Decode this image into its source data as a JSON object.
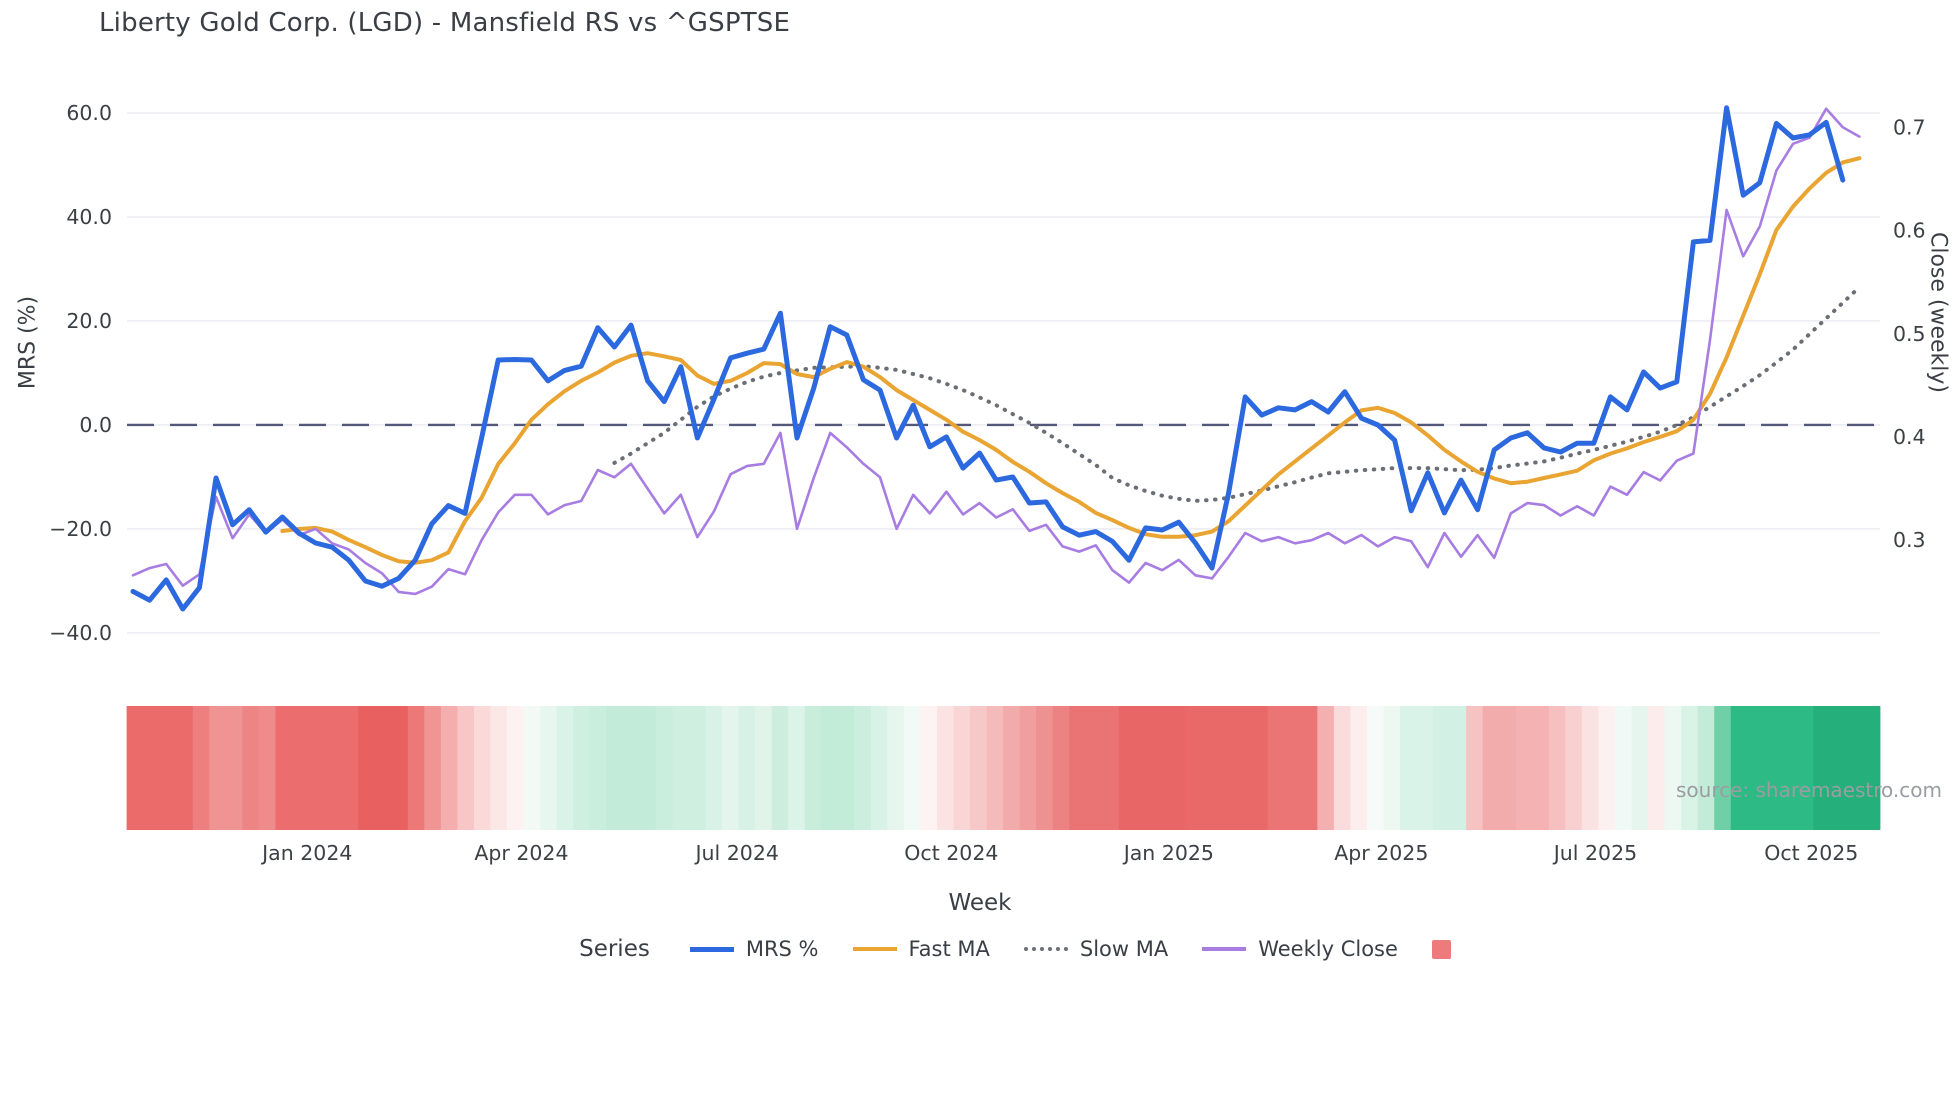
{
  "page": {
    "title": "Liberty Gold Corp. (LGD) - Mansfield RS vs ^GSPTSE",
    "source_note": "source: sharemaestro.com"
  },
  "legend": {
    "label": "Series"
  },
  "chart_data": {
    "type": "line",
    "title": "Liberty Gold Corp. (LGD) - Mansfield RS vs ^GSPTSE",
    "xlabel": "Week",
    "ylabel_left": "MRS (%)",
    "ylabel_right": "Close (weekly)",
    "x_weeks_total": 105,
    "x_ticks": [
      {
        "pos": 10.5,
        "label": "Jan 2024"
      },
      {
        "pos": 23.4,
        "label": "Apr 2024"
      },
      {
        "pos": 36.4,
        "label": "Jul 2024"
      },
      {
        "pos": 49.3,
        "label": "Oct 2024"
      },
      {
        "pos": 62.4,
        "label": "Jan 2025"
      },
      {
        "pos": 75.2,
        "label": "Apr 2025"
      },
      {
        "pos": 88.1,
        "label": "Jul 2025"
      },
      {
        "pos": 101.1,
        "label": "Oct 2025"
      }
    ],
    "left_axis": {
      "range": [
        -45.2,
        65.0
      ],
      "ticks": [
        {
          "v": 60,
          "label": "60.0"
        },
        {
          "v": 40,
          "label": "40.0"
        },
        {
          "v": 20,
          "label": "20.0"
        },
        {
          "v": 0,
          "label": "0.0"
        },
        {
          "v": -20,
          "label": "−20.0"
        },
        {
          "v": -40,
          "label": "−40.0"
        }
      ]
    },
    "right_axis": {
      "range": [
        0.184,
        0.739
      ],
      "ticks": [
        {
          "v": 0.7,
          "label": "0.7"
        },
        {
          "v": 0.6,
          "label": "0.6"
        },
        {
          "v": 0.5,
          "label": "0.5"
        },
        {
          "v": 0.4,
          "label": "0.4"
        },
        {
          "v": 0.3,
          "label": "0.3"
        }
      ]
    },
    "zero_line": {
      "value": 0,
      "style": "dashed",
      "color": "#53587a"
    },
    "grid_color": "#ebedf2",
    "series": [
      {
        "name": "MRS %",
        "color": "#2c69df",
        "width": 5,
        "style": "solid",
        "axis": "left",
        "start_week": 0,
        "values": [
          -32,
          -33.7,
          -29.8,
          -35.4,
          -31.3,
          -10.2,
          -19.2,
          -16.3,
          -20.6,
          -17.7,
          -20.8,
          -22.7,
          -23.5,
          -26,
          -30,
          -31,
          -29.5,
          -26,
          -19,
          -15.5,
          -17,
          -2.5,
          12.5,
          12.6,
          12.5,
          8.5,
          10.5,
          11.3,
          18.7,
          15,
          19.2,
          8.5,
          4.5,
          11.2,
          -2.5,
          5,
          12.9,
          13.8,
          14.6,
          21.5,
          -2.5,
          7,
          18.9,
          17.3,
          8.7,
          6.7,
          -2.5,
          3.8,
          -4.2,
          -2.3,
          -8.3,
          -5.4,
          -10.6,
          -10,
          -15,
          -14.8,
          -19.6,
          -21.2,
          -20.5,
          -22.4,
          -26,
          -19.8,
          -20.2,
          -18.7,
          -22.7,
          -27.5,
          -13.1,
          5.4,
          1.9,
          3.3,
          2.9,
          4.5,
          2.5,
          6.4,
          1.3,
          0,
          -2.9,
          -16.5,
          -9.2,
          -16.9,
          -10.6,
          -16.3,
          -4.8,
          -2.5,
          -1.5,
          -4.4,
          -5.2,
          -3.5,
          -3.5,
          5.4,
          2.9,
          10.2,
          7.1,
          8.3,
          35.2,
          35.5,
          61,
          44.2,
          46.6,
          58,
          55.2,
          55.8,
          58.2,
          47.1,
          null
        ]
      },
      {
        "name": "Fast MA",
        "color": "#e9a432",
        "width": 4,
        "style": "solid",
        "axis": "left",
        "start_week": 9,
        "values": [
          -20.4,
          -20,
          -19.8,
          -20.5,
          -22.1,
          -23.5,
          -25,
          -26.2,
          -26.5,
          -26,
          -24.5,
          -18.5,
          -14,
          -7.5,
          -3.5,
          1,
          4,
          6.5,
          8.5,
          10.1,
          12,
          13.3,
          13.8,
          13.2,
          12.5,
          9.5,
          7.9,
          8.5,
          10,
          11.9,
          11.7,
          9.8,
          9.2,
          10.8,
          12.1,
          11.2,
          9.2,
          6.7,
          4.8,
          2.9,
          1,
          -1.3,
          -2.9,
          -4.8,
          -7.1,
          -9,
          -11.2,
          -13.1,
          -14.8,
          -16.9,
          -18.3,
          -19.8,
          -21,
          -21.5,
          -21.5,
          -21.2,
          -20.5,
          -18.5,
          -15.5,
          -12.5,
          -9.5,
          -7,
          -4.5,
          -2,
          0.5,
          2.8,
          3.3,
          2.3,
          0.5,
          -2,
          -4.8,
          -7,
          -9,
          -10.3,
          -11.2,
          -10.9,
          -10.2,
          -9.5,
          -8.8,
          -6.8,
          -5.5,
          -4.5,
          -3.3,
          -2.3,
          -1.2,
          1,
          6,
          13,
          21,
          29,
          37.5,
          42,
          45.5,
          48.5,
          50.5,
          51.3
        ]
      },
      {
        "name": "Slow MA",
        "color": "#6b6f75",
        "width": 4,
        "style": "dotted",
        "axis": "left",
        "start_week": 29,
        "values": [
          -7.3,
          -5.5,
          -3.5,
          -1.5,
          1,
          3.5,
          5.5,
          7,
          8.3,
          9.3,
          10,
          10.5,
          11,
          11.1,
          11.2,
          11.3,
          11,
          10.6,
          9.8,
          9,
          7.9,
          6.7,
          5.3,
          3.8,
          2.1,
          0.4,
          -1.5,
          -3.5,
          -5.6,
          -7.7,
          -10.2,
          -11.6,
          -12.7,
          -13.6,
          -14.2,
          -14.6,
          -14.4,
          -14,
          -13.3,
          -12.6,
          -11.8,
          -11,
          -10.1,
          -9.3,
          -9,
          -8.7,
          -8.5,
          -8.3,
          -8.3,
          -8.3,
          -8.5,
          -8.7,
          -8.6,
          -8.3,
          -7.8,
          -7.4,
          -7,
          -6.3,
          -5.5,
          -4.8,
          -4,
          -3.2,
          -2.3,
          -1.3,
          0,
          1.5,
          3.5,
          5.5,
          7.5,
          9.6,
          12,
          14.5,
          17.5,
          20.5,
          23.5,
          26.5
        ]
      },
      {
        "name": "Weekly Close",
        "color": "#a87de2",
        "width": 2.6,
        "style": "solid",
        "axis": "right",
        "start_week": 0,
        "values": [
          0.266,
          0.273,
          0.277,
          0.256,
          0.267,
          0.342,
          0.302,
          0.325,
          0.307,
          0.32,
          0.305,
          0.311,
          0.297,
          0.291,
          0.278,
          0.268,
          0.25,
          0.248,
          0.255,
          0.272,
          0.267,
          0.3,
          0.327,
          0.344,
          0.344,
          0.325,
          0.334,
          0.338,
          0.368,
          0.361,
          0.374,
          0.35,
          0.326,
          0.344,
          0.303,
          0.328,
          0.364,
          0.372,
          0.374,
          0.404,
          0.311,
          0.36,
          0.404,
          0.39,
          0.374,
          0.361,
          0.311,
          0.344,
          0.326,
          0.347,
          0.325,
          0.336,
          0.322,
          0.33,
          0.309,
          0.315,
          0.294,
          0.289,
          0.295,
          0.271,
          0.259,
          0.278,
          0.271,
          0.281,
          0.266,
          0.263,
          0.284,
          0.307,
          0.299,
          0.303,
          0.297,
          0.3,
          0.307,
          0.297,
          0.305,
          0.294,
          0.303,
          0.299,
          0.274,
          0.307,
          0.284,
          0.305,
          0.283,
          0.326,
          0.336,
          0.334,
          0.324,
          0.333,
          0.324,
          0.352,
          0.344,
          0.366,
          0.358,
          0.377,
          0.384,
          0.494,
          0.62,
          0.575,
          0.604,
          0.658,
          0.684,
          0.69,
          0.718,
          0.7,
          0.691
        ]
      }
    ],
    "band": {
      "legend_swatch_color": "#ee7b7b",
      "runs": [
        {
          "from": 0,
          "to": 3,
          "color": "#eb6a6a"
        },
        {
          "from": 4,
          "to": 4,
          "color": "#ee7f7f"
        },
        {
          "from": 5,
          "to": 6,
          "color": "#f09393"
        },
        {
          "from": 7,
          "to": 7,
          "color": "#ee8585"
        },
        {
          "from": 8,
          "to": 8,
          "color": "#ef8b8b"
        },
        {
          "from": 9,
          "to": 13,
          "color": "#eb6d6d"
        },
        {
          "from": 14,
          "to": 16,
          "color": "#e86060"
        },
        {
          "from": 17,
          "to": 17,
          "color": "#ec7878"
        },
        {
          "from": 18,
          "to": 18,
          "color": "#f09494"
        },
        {
          "from": 19,
          "to": 19,
          "color": "#f4aeae"
        },
        {
          "from": 20,
          "to": 20,
          "color": "#f8c6c6"
        },
        {
          "from": 21,
          "to": 21,
          "color": "#fbd9d9"
        },
        {
          "from": 22,
          "to": 22,
          "color": "#fce7e7"
        },
        {
          "from": 23,
          "to": 23,
          "color": "#fdf1f1"
        },
        {
          "from": 24,
          "to": 24,
          "color": "#f3faf6"
        },
        {
          "from": 25,
          "to": 25,
          "color": "#e7f7ef"
        },
        {
          "from": 26,
          "to": 26,
          "color": "#daf3e8"
        },
        {
          "from": 27,
          "to": 27,
          "color": "#cff0e1"
        },
        {
          "from": 28,
          "to": 28,
          "color": "#c9eedd"
        },
        {
          "from": 29,
          "to": 31,
          "color": "#c2ecd9"
        },
        {
          "from": 32,
          "to": 32,
          "color": "#c9eedd"
        },
        {
          "from": 33,
          "to": 34,
          "color": "#cfefe0"
        },
        {
          "from": 35,
          "to": 35,
          "color": "#d9f2e7"
        },
        {
          "from": 36,
          "to": 36,
          "color": "#e3f5ec"
        },
        {
          "from": 37,
          "to": 37,
          "color": "#d7f1e6"
        },
        {
          "from": 38,
          "to": 38,
          "color": "#e0f4ea"
        },
        {
          "from": 39,
          "to": 39,
          "color": "#cdeedf"
        },
        {
          "from": 40,
          "to": 40,
          "color": "#dcf3e9"
        },
        {
          "from": 41,
          "to": 41,
          "color": "#c8edda"
        },
        {
          "from": 42,
          "to": 43,
          "color": "#c2ecd8"
        },
        {
          "from": 44,
          "to": 44,
          "color": "#cceede"
        },
        {
          "from": 45,
          "to": 45,
          "color": "#d8f2e7"
        },
        {
          "from": 46,
          "to": 46,
          "color": "#e6f6ef"
        },
        {
          "from": 47,
          "to": 47,
          "color": "#f1faf6"
        },
        {
          "from": 48,
          "to": 48,
          "color": "#fdf3f3"
        },
        {
          "from": 49,
          "to": 49,
          "color": "#fbe3e3"
        },
        {
          "from": 50,
          "to": 50,
          "color": "#f9d5d5"
        },
        {
          "from": 51,
          "to": 51,
          "color": "#f7c8c8"
        },
        {
          "from": 52,
          "to": 52,
          "color": "#f5baba"
        },
        {
          "from": 53,
          "to": 53,
          "color": "#f2abab"
        },
        {
          "from": 54,
          "to": 54,
          "color": "#f09e9e"
        },
        {
          "from": 55,
          "to": 55,
          "color": "#ee9191"
        },
        {
          "from": 56,
          "to": 56,
          "color": "#ec8282"
        },
        {
          "from": 57,
          "to": 59,
          "color": "#ea7474"
        },
        {
          "from": 60,
          "to": 63,
          "color": "#e86666"
        },
        {
          "from": 64,
          "to": 68,
          "color": "#e96969"
        },
        {
          "from": 69,
          "to": 71,
          "color": "#eb7474"
        },
        {
          "from": 72,
          "to": 72,
          "color": "#f4b0b0"
        },
        {
          "from": 73,
          "to": 73,
          "color": "#fadcdc"
        },
        {
          "from": 74,
          "to": 74,
          "color": "#fdeeee"
        },
        {
          "from": 75,
          "to": 75,
          "color": "#f6faf8"
        },
        {
          "from": 76,
          "to": 76,
          "color": "#eef8f3"
        },
        {
          "from": 77,
          "to": 78,
          "color": "#daf3e8"
        },
        {
          "from": 79,
          "to": 80,
          "color": "#d2f1e4"
        },
        {
          "from": 81,
          "to": 81,
          "color": "#f6c2c2"
        },
        {
          "from": 82,
          "to": 83,
          "color": "#f3acac"
        },
        {
          "from": 84,
          "to": 85,
          "color": "#f4b2b2"
        },
        {
          "from": 86,
          "to": 86,
          "color": "#f6c0c0"
        },
        {
          "from": 87,
          "to": 87,
          "color": "#f9d0d0"
        },
        {
          "from": 88,
          "to": 88,
          "color": "#fbe2e2"
        },
        {
          "from": 89,
          "to": 89,
          "color": "#fdf0f0"
        },
        {
          "from": 90,
          "to": 90,
          "color": "#f0f9f5"
        },
        {
          "from": 91,
          "to": 91,
          "color": "#e6f6ee"
        },
        {
          "from": 92,
          "to": 92,
          "color": "#fcecec"
        },
        {
          "from": 93,
          "to": 93,
          "color": "#edf8f3"
        },
        {
          "from": 94,
          "to": 94,
          "color": "#daf3e7"
        },
        {
          "from": 95,
          "to": 95,
          "color": "#c2ecd8"
        },
        {
          "from": 96,
          "to": 96,
          "color": "#6fd0a8"
        },
        {
          "from": 97,
          "to": 101,
          "color": "#2eba85"
        },
        {
          "from": 102,
          "to": 105,
          "color": "#25b07b"
        }
      ]
    }
  }
}
